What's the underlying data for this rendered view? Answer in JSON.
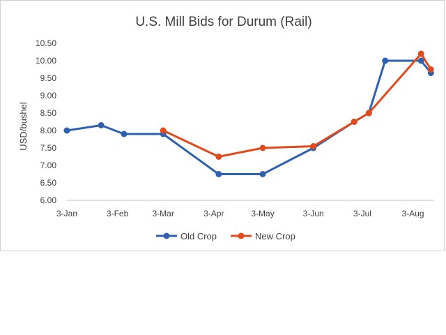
{
  "chart_data": {
    "type": "line",
    "title": "U.S. Mill Bids for Durum (Rail)",
    "xlabel": "",
    "ylabel": "USD/bushel",
    "ylim": [
      6.0,
      10.5
    ],
    "ytick_labels": [
      "6.00",
      "6.50",
      "7.00",
      "7.50",
      "8.00",
      "8.50",
      "9.00",
      "9.50",
      "10.00",
      "10.50"
    ],
    "ytick_values": [
      6.0,
      6.5,
      7.0,
      7.5,
      8.0,
      8.5,
      9.0,
      9.5,
      10.0,
      10.5
    ],
    "xlim_day": [
      0,
      225
    ],
    "xtick_labels": [
      "3-Jan",
      "3-Feb",
      "3-Mar",
      "3-Apr",
      "3-May",
      "3-Jun",
      "3-Jul",
      "3-Aug"
    ],
    "xtick_days": [
      0,
      31,
      59,
      90,
      120,
      151,
      181,
      212
    ],
    "grid": false,
    "legend_position": "bottom",
    "series": [
      {
        "name": "Old Crop",
        "color": "#2e5fb0",
        "x_day": [
          0,
          21,
          35,
          59,
          93,
          120,
          151,
          176,
          185,
          195,
          217,
          223
        ],
        "values": [
          8.0,
          8.15,
          7.9,
          7.9,
          6.75,
          6.75,
          7.5,
          8.25,
          8.5,
          10.0,
          10.0,
          9.65
        ]
      },
      {
        "name": "New Crop",
        "color": "#e04a1c",
        "x_day": [
          59,
          93,
          120,
          151,
          176,
          185,
          217,
          223
        ],
        "values": [
          8.0,
          7.25,
          7.5,
          7.55,
          8.25,
          8.5,
          10.2,
          9.75
        ]
      }
    ]
  }
}
